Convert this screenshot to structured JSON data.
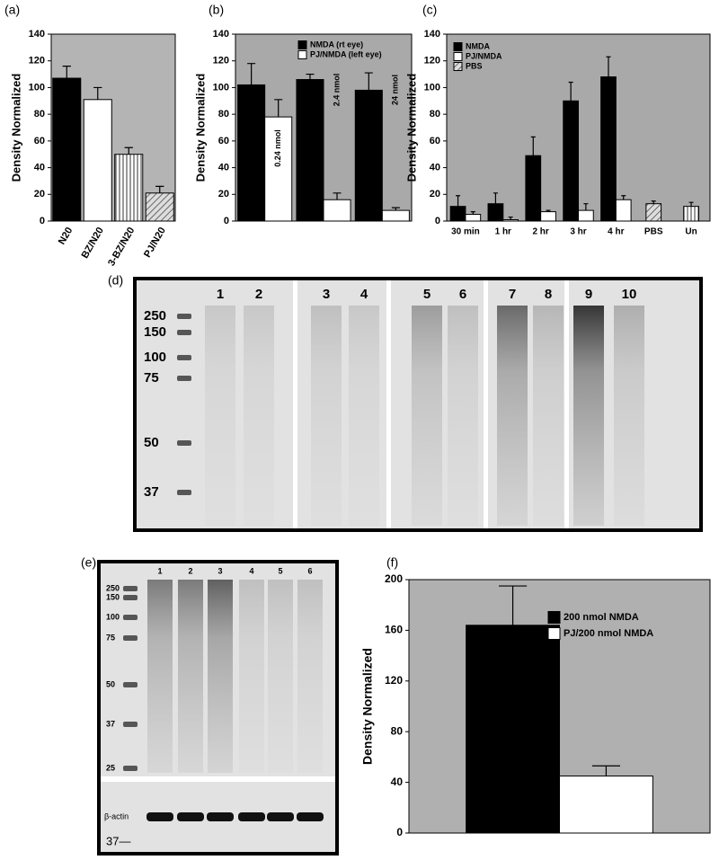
{
  "chart_data": [
    {
      "type": "bar",
      "label": "(a)",
      "ylabel": "Density Normalized",
      "categories": [
        "N20",
        "BZ/N20",
        "3-BZ/N20",
        "PJ/N20"
      ],
      "values": [
        107,
        91,
        50,
        21
      ],
      "errors": [
        9,
        9,
        5,
        5
      ],
      "colors": [
        "#000000",
        "#ffffff",
        "url(#vstripe)",
        "url(#hatch)"
      ],
      "ylim": [
        0,
        140
      ],
      "yticks": [
        0,
        20,
        40,
        60,
        80,
        100,
        120,
        140
      ]
    },
    {
      "type": "grouped_bar",
      "label": "(b)",
      "ylabel": "Density Normalized",
      "categories": [
        null,
        null,
        null
      ],
      "series": [
        {
          "name": "NMDA (rt eye)",
          "color": "#000000",
          "values": [
            102,
            106,
            98
          ],
          "errors": [
            16,
            4,
            13
          ]
        },
        {
          "name": "PJ/NMDA (left eye)",
          "color": "#ffffff",
          "values": [
            78,
            16,
            8
          ],
          "errors": [
            13,
            5,
            2
          ]
        }
      ],
      "annotations": [
        "0.24 nmol",
        "2.4 nmol",
        "24 nmol"
      ],
      "legend": "upper center",
      "ylim": [
        0,
        140
      ],
      "yticks": [
        0,
        20,
        40,
        60,
        80,
        100,
        120,
        140
      ]
    },
    {
      "type": "grouped_bar",
      "label": "(c)",
      "ylabel": "Density Normalized",
      "categories": [
        "30 min",
        "1 hr",
        "2 hr",
        "3 hr",
        "4 hr",
        "PBS",
        "Un"
      ],
      "series": [
        {
          "name": "NMDA",
          "color": "#000000",
          "values": [
            11,
            13,
            49,
            90,
            108,
            null,
            null
          ],
          "errors": [
            8,
            8,
            14,
            14,
            15,
            null,
            null
          ]
        },
        {
          "name": "PJ/NMDA",
          "color": "#ffffff",
          "values": [
            5,
            1,
            7,
            8,
            16,
            null,
            null
          ],
          "errors": [
            2,
            2,
            1,
            5,
            3,
            null,
            null
          ]
        },
        {
          "name": "PBS",
          "color": "url(#hatch)",
          "values": [
            null,
            null,
            null,
            null,
            null,
            13,
            null
          ],
          "errors": [
            null,
            null,
            null,
            null,
            null,
            2,
            null
          ]
        },
        {
          "color": "url(#vstripe)",
          "values": [
            null,
            null,
            null,
            null,
            null,
            null,
            11
          ],
          "errors": [
            null,
            null,
            null,
            null,
            null,
            null,
            3
          ]
        }
      ],
      "legend": "upper left",
      "ylim": [
        0,
        140
      ],
      "yticks": [
        0,
        20,
        40,
        60,
        80,
        100,
        120,
        140
      ]
    },
    {
      "type": "grouped_bar",
      "label": "(f)",
      "ylabel": "Density Normalized",
      "categories": [
        null
      ],
      "series": [
        {
          "name": "200 nmol NMDA",
          "color": "#000000",
          "values": [
            164
          ],
          "errors": [
            31
          ]
        },
        {
          "name": "PJ/200 nmol NMDA",
          "color": "#ffffff",
          "values": [
            45
          ],
          "errors": [
            8
          ]
        }
      ],
      "legend": "upper right",
      "ylim": [
        0,
        200
      ],
      "yticks": [
        0,
        40,
        80,
        120,
        160,
        200
      ]
    }
  ],
  "gels": [
    {
      "label": "(d)",
      "lanes": [
        "1",
        "2",
        "3",
        "4",
        "5",
        "6",
        "7",
        "8",
        "9",
        "10"
      ],
      "markers": [
        "250",
        "150",
        "100",
        "75",
        "50",
        "37"
      ]
    },
    {
      "label": "(e)",
      "lanes": [
        "1",
        "2",
        "3",
        "4",
        "5",
        "6"
      ],
      "markers": [
        "250",
        "150",
        "100",
        "75",
        "50",
        "37",
        "25"
      ],
      "loading_label": "β-actin",
      "loading_marker": "37—"
    }
  ]
}
